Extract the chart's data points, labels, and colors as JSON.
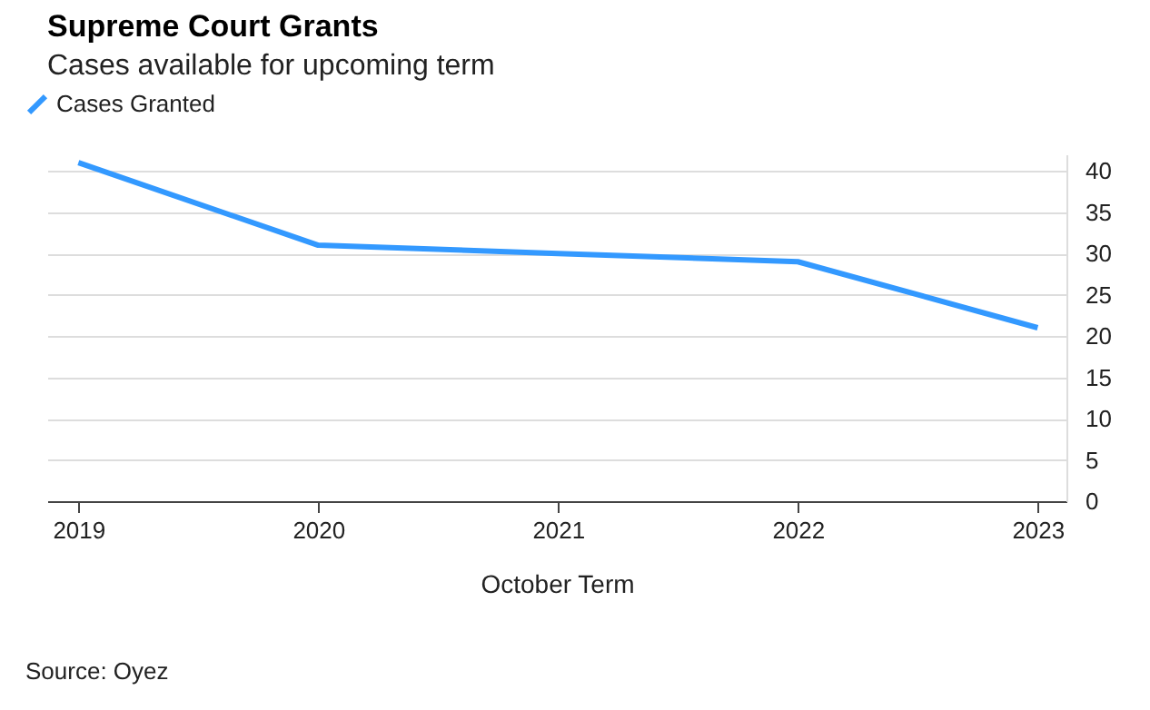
{
  "chart_data": {
    "type": "line",
    "title": "Supreme Court Grants",
    "subtitle": "Cases available for upcoming term",
    "xlabel": "October Term",
    "categories": [
      "2019",
      "2020",
      "2021",
      "2022",
      "2023"
    ],
    "series": [
      {
        "name": "Cases Granted",
        "color": "#3399ff",
        "values": [
          41,
          31,
          30,
          29,
          21
        ]
      }
    ],
    "ylim": [
      0,
      42
    ],
    "yticks": [
      0,
      5,
      10,
      15,
      20,
      25,
      30,
      35,
      40
    ],
    "grid": "y",
    "legend": "top left",
    "marker": "none",
    "line_style": "solid",
    "annotations": [
      "Source: Oyez"
    ]
  }
}
